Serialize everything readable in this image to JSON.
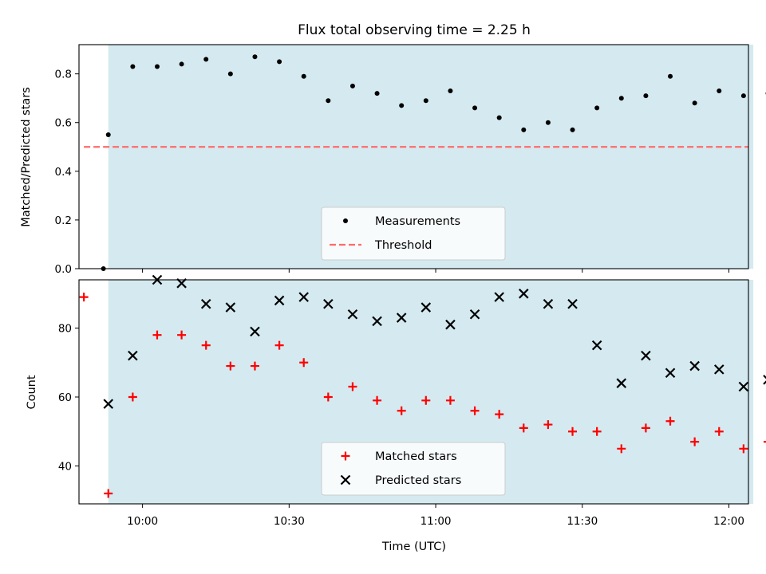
{
  "chart_data": [
    {
      "type": "scatter",
      "title": "Flux total observing time = 2.25 h",
      "xlabel": "",
      "ylabel": "Matched/Predicted stars",
      "xlim": [
        "09:47",
        "12:04"
      ],
      "ylim": [
        0,
        0.92
      ],
      "yticks": [
        "0.0",
        "0.2",
        "0.4",
        "0.6",
        "0.8"
      ],
      "ytick_values": [
        0,
        0.2,
        0.4,
        0.6,
        0.8
      ],
      "grid": false,
      "legend_position": "lower-center",
      "observing_window": [
        "09:53",
        "12:05"
      ],
      "observing_window_color": "#d4eaf0",
      "series": [
        {
          "name": "Measurements",
          "marker": "dot",
          "color": "#000000",
          "x": [
            "09:52",
            "09:53",
            "09:58",
            "10:03",
            "10:08",
            "10:13",
            "10:18",
            "10:23",
            "10:28",
            "10:33",
            "10:38",
            "10:43",
            "10:48",
            "10:53",
            "10:58",
            "11:03",
            "11:08",
            "11:13",
            "11:18",
            "11:23",
            "11:28",
            "11:33",
            "11:38",
            "11:43",
            "11:48",
            "11:53",
            "11:58",
            "12:03",
            "12:08"
          ],
          "y": [
            0.0,
            0.55,
            0.83,
            0.83,
            0.84,
            0.86,
            0.8,
            0.87,
            0.85,
            0.79,
            0.69,
            0.75,
            0.72,
            0.67,
            0.69,
            0.73,
            0.66,
            0.62,
            0.57,
            0.6,
            0.57,
            0.66,
            0.7,
            0.71,
            0.79,
            0.68,
            0.73,
            0.71,
            0.72
          ]
        },
        {
          "name": "Threshold",
          "marker": "dashed-line",
          "color": "#ff6b6b",
          "x": [
            "09:48",
            "12:04"
          ],
          "y": [
            0.5,
            0.5
          ]
        }
      ]
    },
    {
      "type": "scatter",
      "title": "",
      "xlabel": "Time (UTC)",
      "ylabel": "Count",
      "xlim": [
        "09:47",
        "12:04"
      ],
      "ylim": [
        29,
        94
      ],
      "yticks": [
        "40",
        "60",
        "80"
      ],
      "ytick_values": [
        40,
        60,
        80
      ],
      "xticks": [
        "10:00",
        "10:30",
        "11:00",
        "11:30",
        "12:00"
      ],
      "grid": false,
      "legend_position": "lower-center",
      "observing_window": [
        "09:53",
        "12:05"
      ],
      "observing_window_color": "#d4eaf0",
      "series": [
        {
          "name": "Matched stars",
          "marker": "plus",
          "color": "#ff0000",
          "x": [
            "09:48",
            "09:53",
            "09:58",
            "10:03",
            "10:08",
            "10:13",
            "10:18",
            "10:23",
            "10:28",
            "10:33",
            "10:38",
            "10:43",
            "10:48",
            "10:53",
            "10:58",
            "11:03",
            "11:08",
            "11:13",
            "11:18",
            "11:23",
            "11:28",
            "11:33",
            "11:38",
            "11:43",
            "11:48",
            "11:53",
            "11:58",
            "12:03",
            "12:08"
          ],
          "y": [
            89,
            32,
            60,
            78,
            78,
            75,
            69,
            69,
            75,
            70,
            60,
            63,
            59,
            56,
            59,
            59,
            56,
            55,
            51,
            52,
            50,
            50,
            45,
            51,
            53,
            47,
            50,
            45,
            47
          ]
        },
        {
          "name": "Predicted stars",
          "marker": "x",
          "color": "#000000",
          "x": [
            "09:53",
            "09:58",
            "10:03",
            "10:08",
            "10:13",
            "10:18",
            "10:23",
            "10:28",
            "10:33",
            "10:38",
            "10:43",
            "10:48",
            "10:53",
            "10:58",
            "11:03",
            "11:08",
            "11:13",
            "11:18",
            "11:23",
            "11:28",
            "11:33",
            "11:38",
            "11:43",
            "11:48",
            "11:53",
            "11:58",
            "12:03",
            "12:08"
          ],
          "y": [
            58,
            72,
            94,
            93,
            87,
            86,
            79,
            88,
            89,
            87,
            84,
            82,
            83,
            86,
            81,
            84,
            89,
            90,
            87,
            87,
            75,
            64,
            72,
            67,
            69,
            68,
            63,
            65
          ]
        }
      ]
    }
  ]
}
